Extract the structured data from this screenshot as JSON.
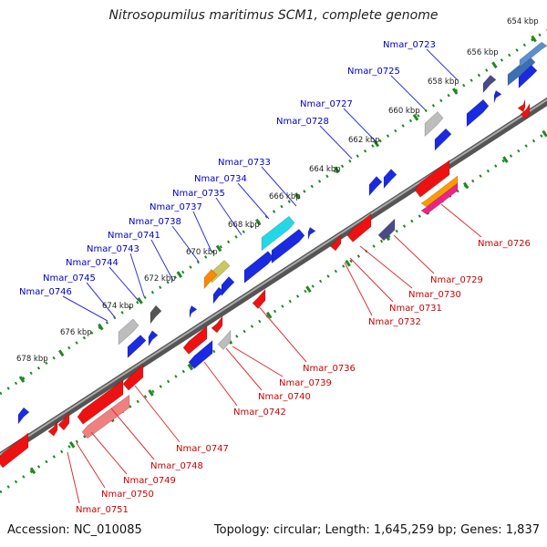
{
  "header": {
    "title": "Nitrosopumilus maritimus SCM1, complete genome"
  },
  "footer": {
    "accession": "Accession: NC_010085",
    "topology": "Topology: circular; Length: 1,645,259 bp; Genes: 1,837"
  },
  "colors": {
    "backbone": "#777777",
    "tick": "#228822",
    "forward_label": "#0000cc",
    "reverse_label": "#cc0000"
  },
  "scale_labels": [
    "654 kbp",
    "656 kbp",
    "658 kbp",
    "660 kbp",
    "662 kbp",
    "664 kbp",
    "666 kbp",
    "668 kbp",
    "670 kbp",
    "672 kbp",
    "674 kbp",
    "676 kbp",
    "678 kbp"
  ],
  "forward_genes": [
    "Nmar_0723",
    "Nmar_0725",
    "Nmar_0727",
    "Nmar_0728",
    "Nmar_0733",
    "Nmar_0734",
    "Nmar_0735",
    "Nmar_0737",
    "Nmar_0738",
    "Nmar_0741",
    "Nmar_0743",
    "Nmar_0744",
    "Nmar_0745",
    "Nmar_0746"
  ],
  "reverse_genes": [
    "Nmar_0726",
    "Nmar_0729",
    "Nmar_0730",
    "Nmar_0731",
    "Nmar_0732",
    "Nmar_0736",
    "Nmar_0739",
    "Nmar_0740",
    "Nmar_0742",
    "Nmar_0747",
    "Nmar_0748",
    "Nmar_0749",
    "Nmar_0750",
    "Nmar_0751"
  ]
}
